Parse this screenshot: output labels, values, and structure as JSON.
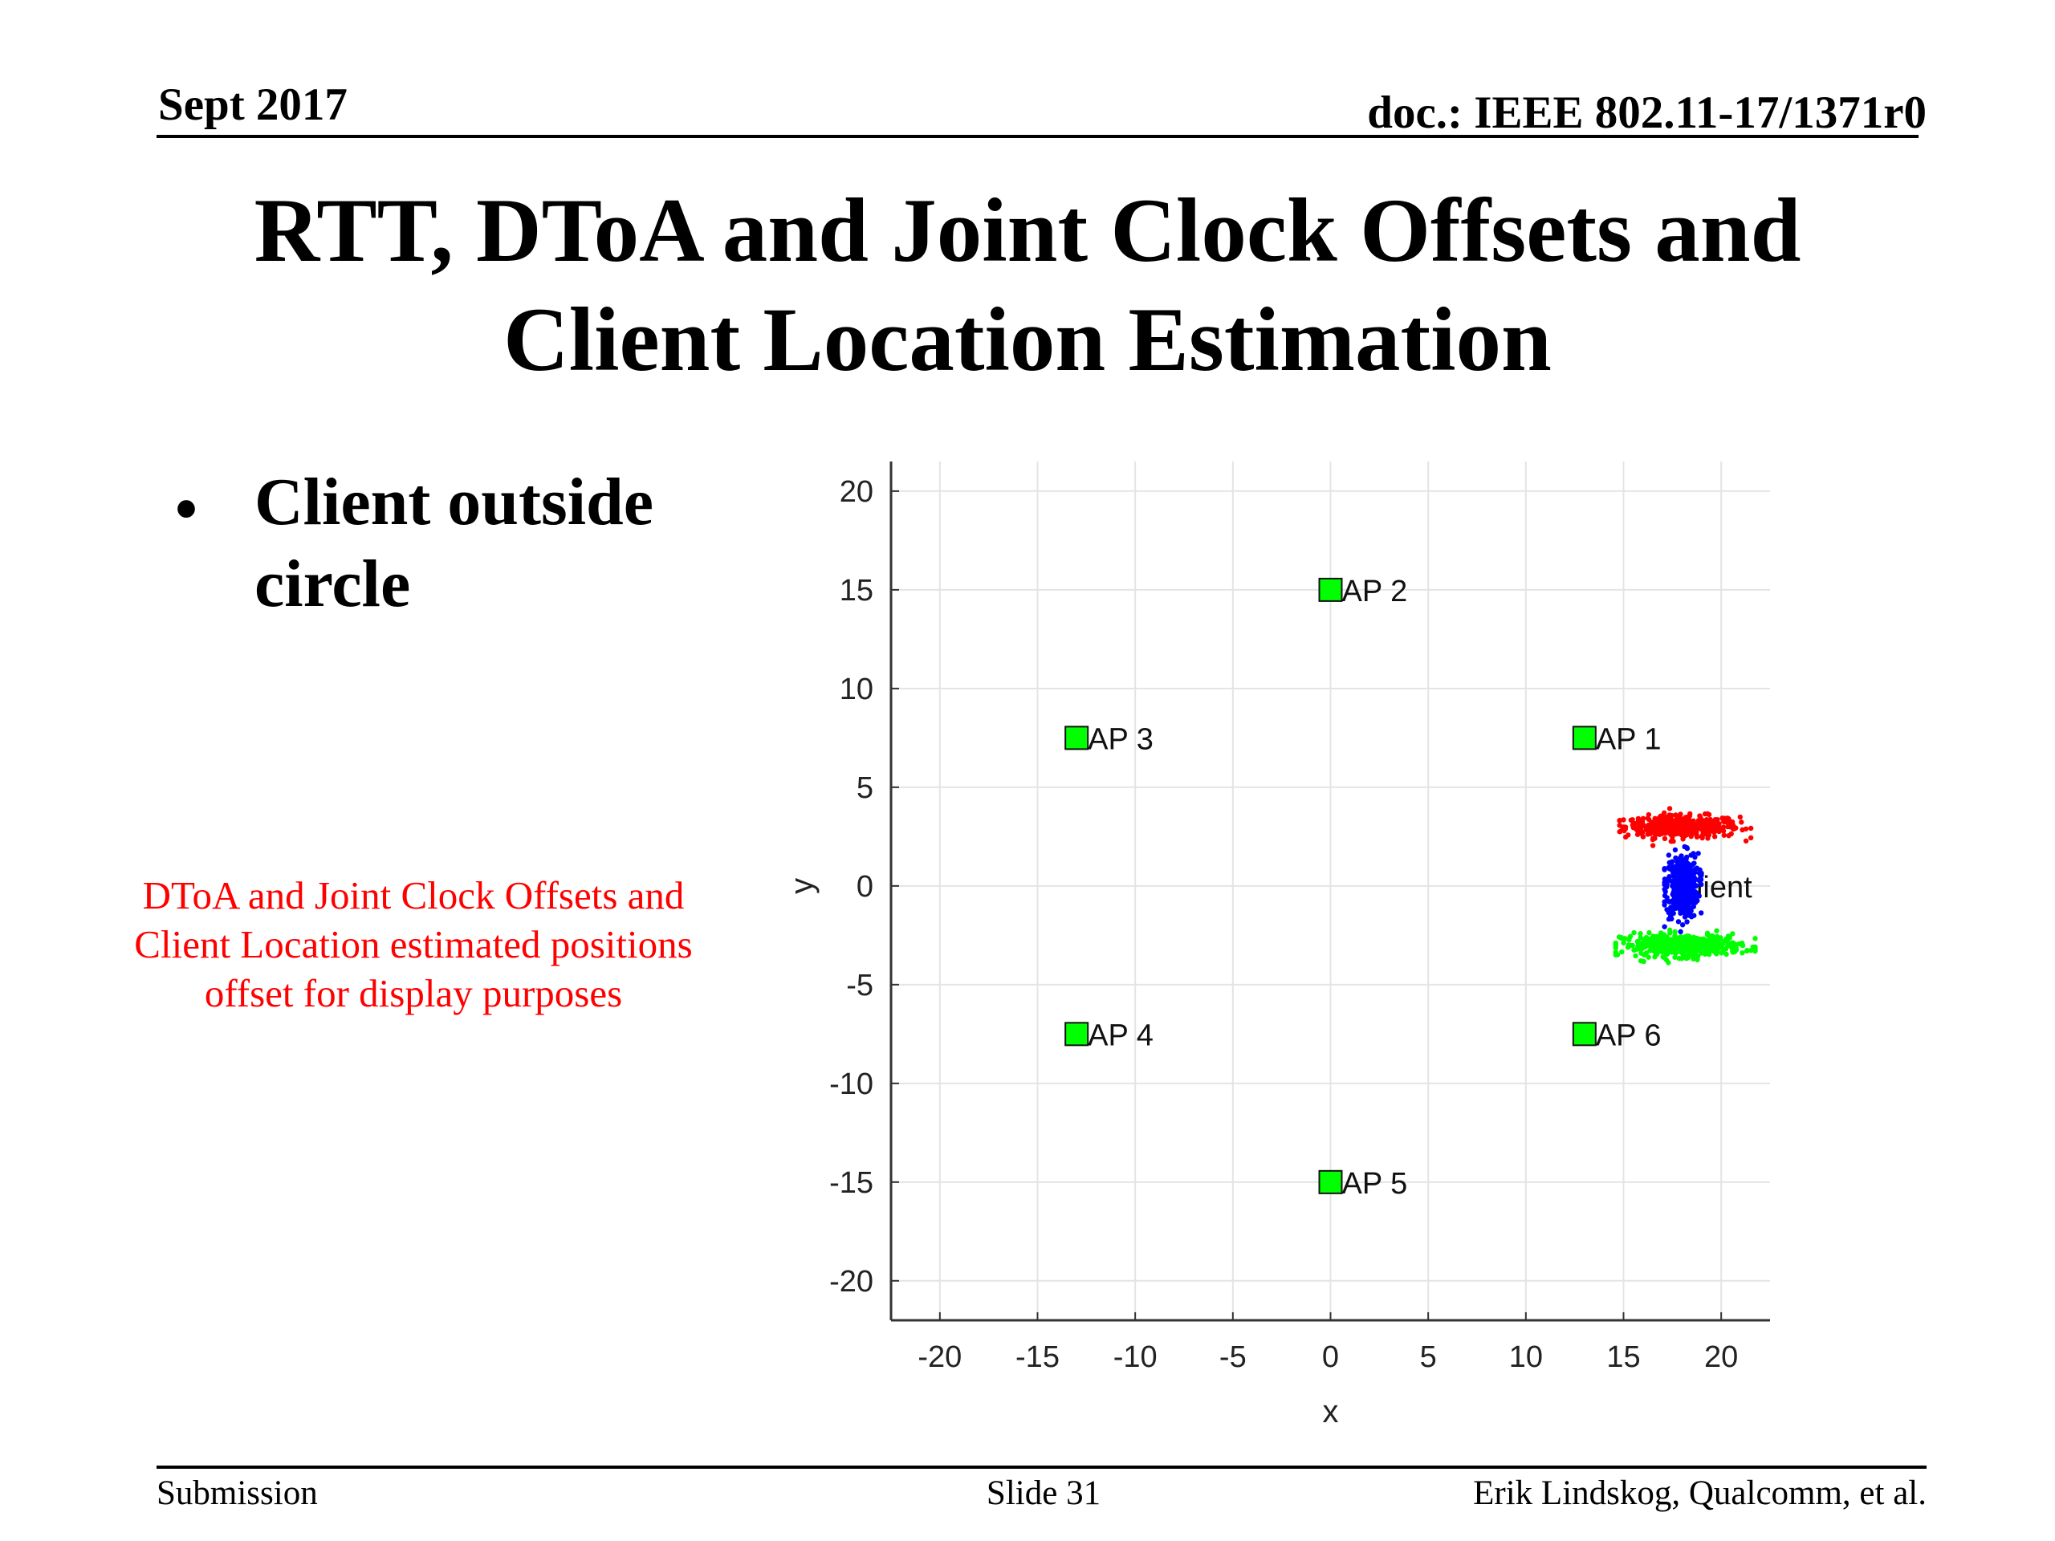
{
  "header": {
    "date": "Sept 2017",
    "doc": "doc.: IEEE 802.11-17/1371r0"
  },
  "title": {
    "line1": "RTT, DToA and Joint Clock Offsets and",
    "line2": "Client Location Estimation"
  },
  "bullet": {
    "symbol": "•",
    "text": "Client outside circle"
  },
  "note": {
    "line1": "DToA and Joint Clock Offsets and",
    "line2": "Client Location estimated positions",
    "line3": "offset for display purposes",
    "color": "#ff0000"
  },
  "chart_data": {
    "type": "scatter",
    "xlabel": "x",
    "ylabel": "y",
    "xlim": [
      -22.5,
      22.5
    ],
    "ylim": [
      -22,
      21.5
    ],
    "xticks": [
      -20,
      -15,
      -10,
      -5,
      0,
      5,
      10,
      15,
      20
    ],
    "yticks": [
      20,
      15,
      10,
      5,
      0,
      -5,
      -10,
      -15,
      -20
    ],
    "grid": true,
    "access_points": [
      {
        "label": "AP 1",
        "x": 13,
        "y": 7.5
      },
      {
        "label": "AP 2",
        "x": 0,
        "y": 15
      },
      {
        "label": "AP 3",
        "x": -13,
        "y": 7.5
      },
      {
        "label": "AP 4",
        "x": -13,
        "y": -7.5
      },
      {
        "label": "AP 5",
        "x": 0,
        "y": -15
      },
      {
        "label": "AP 6",
        "x": 13,
        "y": -7.5
      }
    ],
    "ap_marker_color": "#00ff00",
    "client_label": "Client",
    "client_position": {
      "x": 18,
      "y": 0
    },
    "clusters": [
      {
        "color": "#ff0000",
        "center_x": 18,
        "center_y": 3,
        "spread_x": 3.2,
        "spread_y": 0.45,
        "count": 420
      },
      {
        "color": "#0000ff",
        "center_x": 18,
        "center_y": 0,
        "spread_x": 0.9,
        "spread_y": 1.3,
        "count": 420
      },
      {
        "color": "#00ff00",
        "center_x": 18,
        "center_y": -3,
        "spread_x": 3.4,
        "spread_y": 0.45,
        "count": 420
      }
    ]
  },
  "footer": {
    "left": "Submission",
    "center": "Slide 31",
    "right": "Erik Lindskog, Qualcomm, et al."
  }
}
